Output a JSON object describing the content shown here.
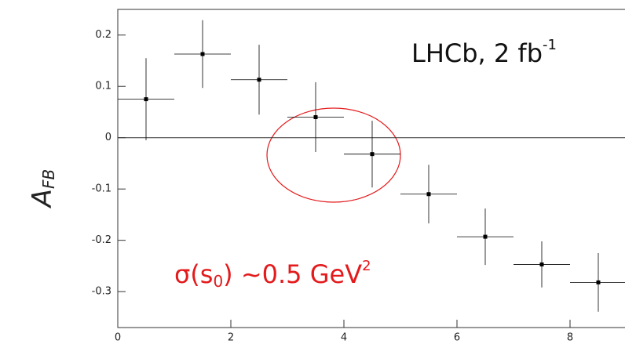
{
  "chart_data": {
    "type": "errorbar",
    "y_label": {
      "main": "A",
      "sub": "FB"
    },
    "annotations": [
      {
        "text": "LHCb, 2 fb",
        "sup": "-1",
        "color": "#111111"
      },
      {
        "text": "σ(s",
        "sub": "0",
        "rest": ") ~0.5  GeV",
        "sup": "2",
        "color": "#e41a1c"
      }
    ],
    "xlim": [
      0,
      9
    ],
    "ylim": [
      -0.37,
      0.25
    ],
    "xticks": [
      0,
      2,
      4,
      6,
      8
    ],
    "yticks": [
      -0.3,
      -0.2,
      -0.1,
      0,
      0.1,
      0.2
    ],
    "reference_line": 0,
    "series": [
      {
        "color": "#000000",
        "x": [
          0.5,
          1.5,
          2.5,
          3.5,
          4.5,
          5.5,
          6.5,
          7.5,
          8.5
        ],
        "xerr": [
          0.5,
          0.5,
          0.5,
          0.5,
          0.5,
          0.5,
          0.5,
          0.5,
          0.5
        ],
        "y": [
          0.075,
          0.163,
          0.113,
          0.04,
          -0.032,
          -0.11,
          -0.193,
          -0.247,
          -0.282
        ],
        "yerr": [
          0.08,
          0.066,
          0.068,
          0.068,
          0.065,
          0.057,
          0.055,
          0.045,
          0.057
        ]
      }
    ]
  }
}
